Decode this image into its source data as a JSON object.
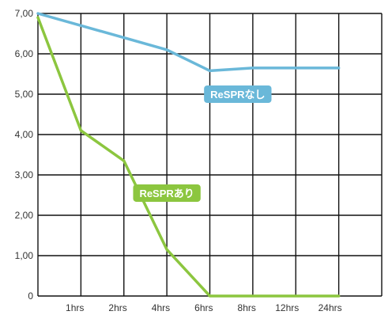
{
  "chart_data": {
    "type": "line",
    "categories": [
      "",
      "1hrs",
      "2hrs",
      "4hrs",
      "6hrs",
      "8hrs",
      "12hrs",
      "24hrs"
    ],
    "ylim": [
      0,
      7
    ],
    "y_ticks": [
      "0",
      "1,00",
      "2,00",
      "3,00",
      "4,00",
      "5,00",
      "6,00",
      "7,00"
    ],
    "grid": true,
    "xlabel": "",
    "ylabel": "",
    "title": "",
    "series": [
      {
        "name": "ReSPRなし",
        "color": "#6ab8d9",
        "points": [
          [
            0,
            7.0
          ],
          [
            1,
            6.7
          ],
          [
            2,
            6.4
          ],
          [
            3,
            6.1
          ],
          [
            4,
            5.58
          ],
          [
            5,
            5.65
          ],
          [
            6,
            5.65
          ],
          [
            7,
            5.65
          ]
        ],
        "label_anchor": [
          4.65,
          5.0
        ]
      },
      {
        "name": "ReSPRあり",
        "color": "#8cc63f",
        "points": [
          [
            0,
            6.9
          ],
          [
            1,
            4.1
          ],
          [
            2,
            3.35
          ],
          [
            3,
            1.15
          ],
          [
            4,
            0.0
          ],
          [
            5,
            0.0
          ],
          [
            6,
            0.0
          ],
          [
            7,
            0.0
          ]
        ],
        "label_anchor": [
          3.0,
          2.55
        ]
      }
    ]
  }
}
